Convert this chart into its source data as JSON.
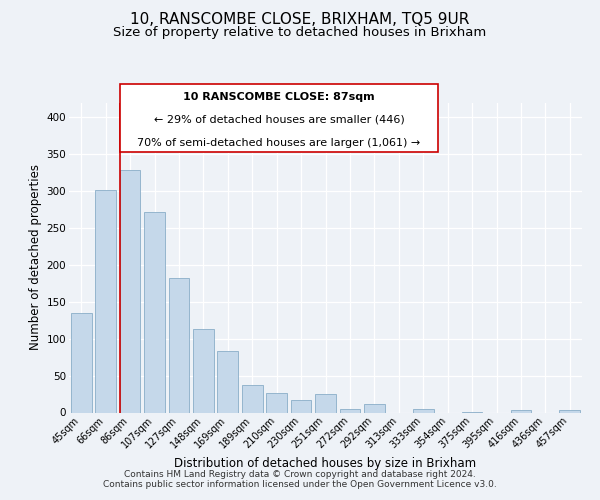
{
  "title": "10, RANSCOMBE CLOSE, BRIXHAM, TQ5 9UR",
  "subtitle": "Size of property relative to detached houses in Brixham",
  "xlabel": "Distribution of detached houses by size in Brixham",
  "ylabel": "Number of detached properties",
  "bar_labels": [
    "45sqm",
    "66sqm",
    "86sqm",
    "107sqm",
    "127sqm",
    "148sqm",
    "169sqm",
    "189sqm",
    "210sqm",
    "230sqm",
    "251sqm",
    "272sqm",
    "292sqm",
    "313sqm",
    "333sqm",
    "354sqm",
    "375sqm",
    "395sqm",
    "416sqm",
    "436sqm",
    "457sqm"
  ],
  "bar_values": [
    135,
    302,
    328,
    272,
    182,
    113,
    83,
    37,
    27,
    17,
    25,
    5,
    11,
    0,
    5,
    0,
    1,
    0,
    3,
    0,
    4
  ],
  "bar_color": "#c5d8ea",
  "bar_edge_color": "#8aaec8",
  "highlight_color": "#cc0000",
  "highlight_bar_index": 2,
  "annotation_line1": "10 RANSCOMBE CLOSE: 87sqm",
  "annotation_line2": "← 29% of detached houses are smaller (446)",
  "annotation_line3": "70% of semi-detached houses are larger (1,061) →",
  "ylim": [
    0,
    420
  ],
  "yticks": [
    0,
    50,
    100,
    150,
    200,
    250,
    300,
    350,
    400
  ],
  "footnote1": "Contains HM Land Registry data © Crown copyright and database right 2024.",
  "footnote2": "Contains public sector information licensed under the Open Government Licence v3.0.",
  "background_color": "#eef2f7"
}
